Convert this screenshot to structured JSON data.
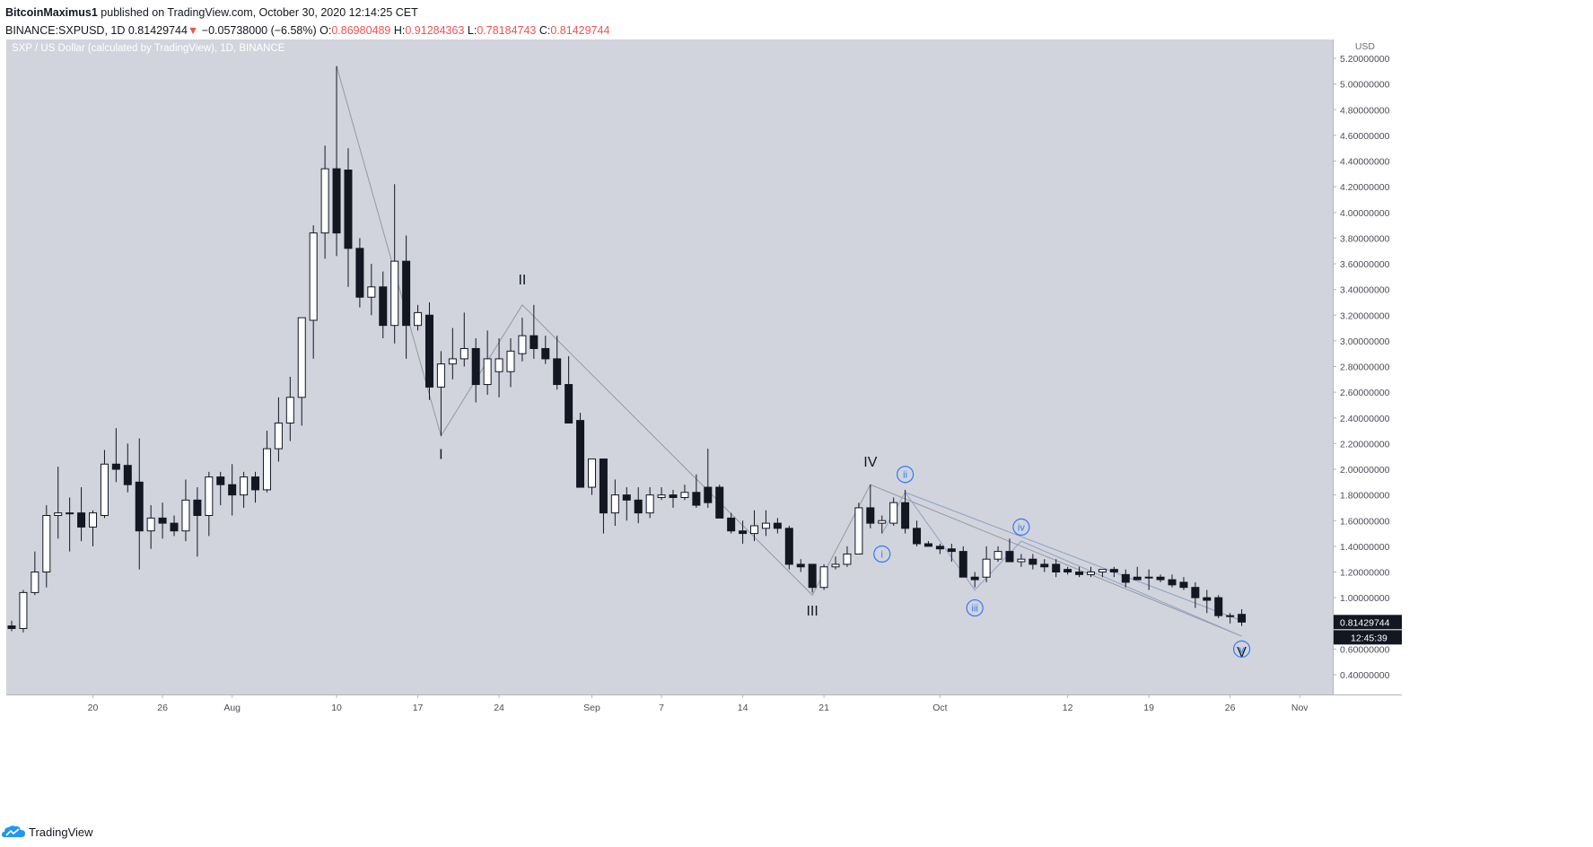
{
  "header": {
    "author": "BitcoinMaximus1",
    "published": " published on TradingView.com, October 30, 2020 12:14:25 CET",
    "symbol": "BINANCE:SXPUSD, 1D",
    "last": "0.81429744",
    "arrow": "▼",
    "change": "−0.05738000 (−6.58%)",
    "o_label": "O:",
    "o_val": "0.86980489",
    "h_label": "H:",
    "h_val": "0.91284363",
    "l_label": "L:",
    "l_val": "0.78184743",
    "c_label": "C:",
    "c_val": "0.81429744"
  },
  "footer": {
    "brand": "TradingView",
    "logo": "tradingview-cloud-logo-icon"
  },
  "colors": {
    "plot_bg": "#d1d4dc",
    "bull": "#ffffff",
    "bear": "#131722",
    "wick": "#131722",
    "wave_line": "#9598a1",
    "sub_wave": "#3179f5",
    "price_tag": "#131722"
  },
  "chart_data": {
    "type": "candlestick",
    "title": "SXP / US Dollar (calculated by TradingView), 1D, BINANCE",
    "currency": "USD",
    "ylim": [
      0.3,
      5.4
    ],
    "yticks": [
      0.4,
      0.6,
      0.8,
      1.0,
      1.2,
      1.4,
      1.6,
      1.8,
      2.0,
      2.2,
      2.4,
      2.6,
      2.8,
      3.0,
      3.2,
      3.4,
      3.6,
      3.8,
      4.0,
      4.2,
      4.4,
      4.6,
      4.8,
      5.0,
      5.2
    ],
    "ytick_labels": [
      "0.40000000",
      "0.60000000",
      "0.80000000",
      "1.00000000",
      "1.20000000",
      "1.40000000",
      "1.60000000",
      "1.80000000",
      "2.00000000",
      "2.20000000",
      "2.40000000",
      "2.60000000",
      "2.80000000",
      "3.00000000",
      "3.20000000",
      "3.40000000",
      "3.60000000",
      "3.80000000",
      "4.00000000",
      "4.20000000",
      "4.40000000",
      "4.60000000",
      "4.80000000",
      "5.00000000",
      "5.20000000"
    ],
    "first_date": "2020-07-13",
    "xticks": [
      {
        "date": "2020-07-20",
        "label": "20"
      },
      {
        "date": "2020-07-26",
        "label": "26"
      },
      {
        "date": "2020-08-01",
        "label": "Aug"
      },
      {
        "date": "2020-08-10",
        "label": "10"
      },
      {
        "date": "2020-08-17",
        "label": "17"
      },
      {
        "date": "2020-08-24",
        "label": "24"
      },
      {
        "date": "2020-09-01",
        "label": "Sep"
      },
      {
        "date": "2020-09-07",
        "label": "7"
      },
      {
        "date": "2020-09-14",
        "label": "14"
      },
      {
        "date": "2020-09-21",
        "label": "21"
      },
      {
        "date": "2020-10-01",
        "label": "Oct"
      },
      {
        "date": "2020-10-12",
        "label": "12"
      },
      {
        "date": "2020-10-19",
        "label": "19"
      },
      {
        "date": "2020-10-26",
        "label": "26"
      },
      {
        "date": "2020-11-01",
        "label": "Nov"
      }
    ],
    "columns": [
      "date",
      "open",
      "high",
      "low",
      "close"
    ],
    "candles": [
      [
        "2020-07-13",
        0.78,
        0.82,
        0.74,
        0.76
      ],
      [
        "2020-07-14",
        0.76,
        1.06,
        0.73,
        1.04
      ],
      [
        "2020-07-15",
        1.04,
        1.36,
        1.02,
        1.2
      ],
      [
        "2020-07-16",
        1.2,
        1.72,
        1.08,
        1.64
      ],
      [
        "2020-07-17",
        1.64,
        2.02,
        1.46,
        1.66
      ],
      [
        "2020-07-18",
        1.66,
        1.78,
        1.36,
        1.66
      ],
      [
        "2020-07-19",
        1.66,
        1.86,
        1.44,
        1.55
      ],
      [
        "2020-07-20",
        1.55,
        1.68,
        1.4,
        1.66
      ],
      [
        "2020-07-21",
        1.64,
        2.15,
        1.62,
        2.04
      ],
      [
        "2020-07-22",
        2.04,
        2.32,
        1.9,
        2.0
      ],
      [
        "2020-07-23",
        2.03,
        2.2,
        1.82,
        1.88
      ],
      [
        "2020-07-24",
        1.9,
        2.24,
        1.22,
        1.52
      ],
      [
        "2020-07-25",
        1.52,
        1.72,
        1.38,
        1.62
      ],
      [
        "2020-07-26",
        1.62,
        1.74,
        1.46,
        1.58
      ],
      [
        "2020-07-27",
        1.58,
        1.64,
        1.48,
        1.52
      ],
      [
        "2020-07-28",
        1.52,
        1.92,
        1.44,
        1.76
      ],
      [
        "2020-07-29",
        1.76,
        1.86,
        1.32,
        1.64
      ],
      [
        "2020-07-30",
        1.64,
        1.98,
        1.48,
        1.94
      ],
      [
        "2020-07-31",
        1.94,
        1.98,
        1.72,
        1.88
      ],
      [
        "2020-08-01",
        1.88,
        2.04,
        1.64,
        1.8
      ],
      [
        "2020-08-02",
        1.8,
        1.98,
        1.7,
        1.94
      ],
      [
        "2020-08-03",
        1.94,
        1.98,
        1.74,
        1.84
      ],
      [
        "2020-08-04",
        1.84,
        2.3,
        1.82,
        2.16
      ],
      [
        "2020-08-05",
        2.16,
        2.56,
        2.06,
        2.36
      ],
      [
        "2020-08-06",
        2.36,
        2.72,
        2.22,
        2.56
      ],
      [
        "2020-08-07",
        2.56,
        3.18,
        2.34,
        3.18
      ],
      [
        "2020-08-08",
        3.16,
        3.9,
        2.86,
        3.84
      ],
      [
        "2020-08-09",
        3.84,
        4.52,
        3.64,
        4.34
      ],
      [
        "2020-08-10",
        4.34,
        5.14,
        3.66,
        3.84
      ],
      [
        "2020-08-11",
        4.33,
        4.5,
        3.42,
        3.72
      ],
      [
        "2020-08-12",
        3.72,
        3.8,
        3.26,
        3.34
      ],
      [
        "2020-08-13",
        3.34,
        3.6,
        3.2,
        3.42
      ],
      [
        "2020-08-14",
        3.42,
        3.54,
        3.02,
        3.12
      ],
      [
        "2020-08-15",
        3.12,
        4.22,
        2.98,
        3.62
      ],
      [
        "2020-08-16",
        3.62,
        3.82,
        2.86,
        3.12
      ],
      [
        "2020-08-17",
        3.12,
        3.28,
        3.08,
        3.22
      ],
      [
        "2020-08-18",
        3.2,
        3.3,
        2.54,
        2.64
      ],
      [
        "2020-08-19",
        2.64,
        2.92,
        2.26,
        2.82
      ],
      [
        "2020-08-20",
        2.82,
        3.1,
        2.7,
        2.86
      ],
      [
        "2020-08-21",
        2.86,
        3.22,
        2.8,
        2.94
      ],
      [
        "2020-08-22",
        2.94,
        3.02,
        2.52,
        2.66
      ],
      [
        "2020-08-23",
        2.66,
        3.08,
        2.58,
        2.86
      ],
      [
        "2020-08-24",
        2.76,
        3.02,
        2.56,
        2.86
      ],
      [
        "2020-08-25",
        2.76,
        3.02,
        2.64,
        2.92
      ],
      [
        "2020-08-26",
        2.9,
        3.18,
        2.84,
        3.04
      ],
      [
        "2020-08-27",
        3.04,
        3.28,
        2.86,
        2.94
      ],
      [
        "2020-08-28",
        2.94,
        3.04,
        2.82,
        2.86
      ],
      [
        "2020-08-29",
        2.86,
        3.04,
        2.62,
        2.66
      ],
      [
        "2020-08-30",
        2.66,
        2.88,
        2.36,
        2.36
      ],
      [
        "2020-08-31",
        2.38,
        2.44,
        1.88,
        1.86
      ],
      [
        "2020-09-01",
        1.86,
        2.08,
        1.8,
        2.08
      ],
      [
        "2020-09-02",
        2.08,
        2.08,
        1.5,
        1.66
      ],
      [
        "2020-09-03",
        1.66,
        1.92,
        1.56,
        1.8
      ],
      [
        "2020-09-04",
        1.8,
        1.86,
        1.6,
        1.76
      ],
      [
        "2020-09-05",
        1.76,
        1.86,
        1.58,
        1.66
      ],
      [
        "2020-09-06",
        1.66,
        1.86,
        1.62,
        1.8
      ],
      [
        "2020-09-07",
        1.78,
        1.86,
        1.76,
        1.8
      ],
      [
        "2020-09-08",
        1.8,
        1.84,
        1.7,
        1.78
      ],
      [
        "2020-09-09",
        1.78,
        1.88,
        1.76,
        1.82
      ],
      [
        "2020-09-10",
        1.82,
        1.96,
        1.7,
        1.72
      ],
      [
        "2020-09-11",
        1.86,
        2.16,
        1.7,
        1.74
      ],
      [
        "2020-09-12",
        1.86,
        1.88,
        1.62,
        1.62
      ],
      [
        "2020-09-13",
        1.62,
        1.66,
        1.5,
        1.52
      ],
      [
        "2020-09-14",
        1.52,
        1.6,
        1.42,
        1.5
      ],
      [
        "2020-09-15",
        1.5,
        1.68,
        1.44,
        1.56
      ],
      [
        "2020-09-16",
        1.54,
        1.68,
        1.48,
        1.58
      ],
      [
        "2020-09-17",
        1.58,
        1.62,
        1.5,
        1.54
      ],
      [
        "2020-09-18",
        1.54,
        1.56,
        1.22,
        1.26
      ],
      [
        "2020-09-19",
        1.26,
        1.3,
        1.2,
        1.24
      ],
      [
        "2020-09-20",
        1.26,
        1.26,
        1.04,
        1.08
      ],
      [
        "2020-09-21",
        1.08,
        1.26,
        1.06,
        1.24
      ],
      [
        "2020-09-22",
        1.24,
        1.32,
        1.22,
        1.26
      ],
      [
        "2020-09-23",
        1.26,
        1.4,
        1.24,
        1.34
      ],
      [
        "2020-09-24",
        1.34,
        1.74,
        1.34,
        1.7
      ],
      [
        "2020-09-25",
        1.7,
        1.88,
        1.54,
        1.58
      ],
      [
        "2020-09-26",
        1.58,
        1.64,
        1.5,
        1.6
      ],
      [
        "2020-09-27",
        1.58,
        1.78,
        1.56,
        1.74
      ],
      [
        "2020-09-28",
        1.74,
        1.84,
        1.5,
        1.54
      ],
      [
        "2020-09-29",
        1.54,
        1.6,
        1.4,
        1.42
      ],
      [
        "2020-09-30",
        1.42,
        1.44,
        1.4,
        1.4
      ],
      [
        "2020-10-01",
        1.4,
        1.42,
        1.34,
        1.38
      ],
      [
        "2020-10-02",
        1.38,
        1.42,
        1.28,
        1.36
      ],
      [
        "2020-10-03",
        1.36,
        1.4,
        1.2,
        1.16
      ],
      [
        "2020-10-04",
        1.16,
        1.2,
        1.08,
        1.14
      ],
      [
        "2020-10-05",
        1.16,
        1.4,
        1.12,
        1.3
      ],
      [
        "2020-10-06",
        1.3,
        1.4,
        1.28,
        1.36
      ],
      [
        "2020-10-07",
        1.36,
        1.46,
        1.28,
        1.28
      ],
      [
        "2020-10-08",
        1.28,
        1.34,
        1.24,
        1.3
      ],
      [
        "2020-10-09",
        1.3,
        1.34,
        1.22,
        1.26
      ],
      [
        "2020-10-10",
        1.26,
        1.3,
        1.2,
        1.24
      ],
      [
        "2020-10-11",
        1.26,
        1.3,
        1.16,
        1.2
      ],
      [
        "2020-10-12",
        1.22,
        1.24,
        1.18,
        1.2
      ],
      [
        "2020-10-13",
        1.2,
        1.24,
        1.16,
        1.18
      ],
      [
        "2020-10-14",
        1.18,
        1.24,
        1.16,
        1.2
      ],
      [
        "2020-10-15",
        1.2,
        1.22,
        1.16,
        1.22
      ],
      [
        "2020-10-16",
        1.22,
        1.24,
        1.16,
        1.2
      ],
      [
        "2020-10-17",
        1.18,
        1.22,
        1.08,
        1.12
      ],
      [
        "2020-10-18",
        1.16,
        1.24,
        1.14,
        1.14
      ],
      [
        "2020-10-19",
        1.16,
        1.22,
        1.06,
        1.16
      ],
      [
        "2020-10-20",
        1.16,
        1.18,
        1.12,
        1.14
      ],
      [
        "2020-10-21",
        1.14,
        1.18,
        1.08,
        1.1
      ],
      [
        "2020-10-22",
        1.12,
        1.16,
        1.06,
        1.08
      ],
      [
        "2020-10-23",
        1.08,
        1.12,
        0.92,
        1.0
      ],
      [
        "2020-10-24",
        1.0,
        1.06,
        0.88,
        0.98
      ],
      [
        "2020-10-25",
        1.0,
        1.02,
        0.84,
        0.86
      ],
      [
        "2020-10-26",
        0.86,
        0.88,
        0.8,
        0.86
      ],
      [
        "2020-10-27",
        0.87,
        0.91,
        0.78,
        0.81
      ]
    ],
    "wave_path": [
      {
        "date": "2020-08-10",
        "price": 5.14
      },
      {
        "date": "2020-08-19",
        "price": 2.26
      },
      {
        "date": "2020-08-26",
        "price": 3.28
      },
      {
        "date": "2020-09-20",
        "price": 1.02
      },
      {
        "date": "2020-09-25",
        "price": 1.88
      },
      {
        "date": "2020-10-27",
        "price": 0.7
      }
    ],
    "wave_labels": [
      {
        "text": "I",
        "date": "2020-08-19",
        "price": 2.08
      },
      {
        "text": "II",
        "date": "2020-08-26",
        "price": 3.44
      },
      {
        "text": "III",
        "date": "2020-09-20",
        "price": 0.86
      },
      {
        "text": "IV",
        "date": "2020-09-25",
        "price": 2.02
      },
      {
        "text": "V",
        "date": "2020-10-27",
        "price": 0.54
      }
    ],
    "subwave_path": [
      {
        "date": "2020-09-26",
        "price": 1.5
      },
      {
        "date": "2020-09-28",
        "price": 1.82
      },
      {
        "date": "2020-10-04",
        "price": 1.06
      },
      {
        "date": "2020-10-08",
        "price": 1.44
      },
      {
        "date": "2020-10-27",
        "price": 0.7
      }
    ],
    "subwave_upper": [
      {
        "date": "2020-09-28",
        "price": 1.82
      },
      {
        "date": "2020-10-27",
        "price": 0.82
      }
    ],
    "subwave_labels": [
      {
        "text": "i",
        "date": "2020-09-26",
        "price": 1.34
      },
      {
        "text": "ii",
        "date": "2020-09-28",
        "price": 1.96
      },
      {
        "text": "iii",
        "date": "2020-10-04",
        "price": 0.92
      },
      {
        "text": "iv",
        "date": "2020-10-08",
        "price": 1.55
      },
      {
        "text": "v",
        "date": "2020-10-27",
        "price": 0.6
      }
    ],
    "last_price_label": "0.81429744",
    "countdown": "12:45:39"
  }
}
